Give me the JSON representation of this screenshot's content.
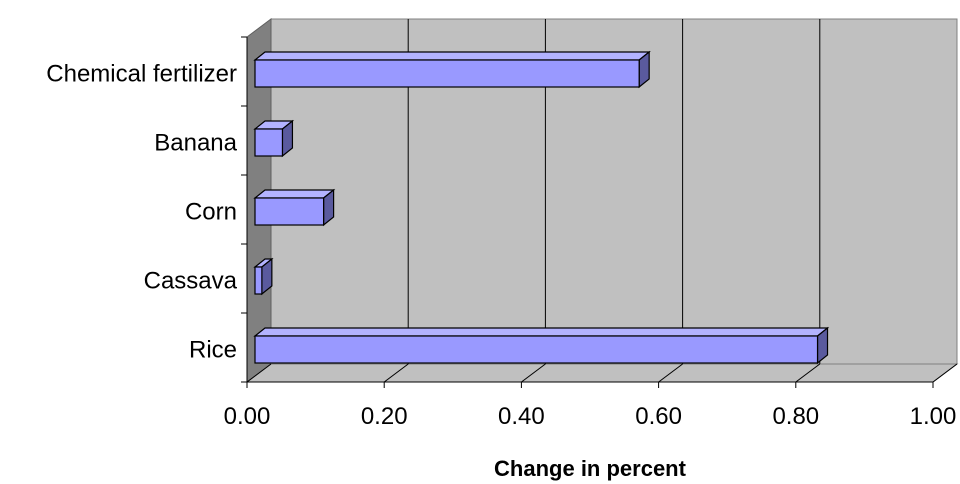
{
  "chart_data": {
    "type": "bar",
    "orientation": "horizontal",
    "style": "3d",
    "title": "",
    "xlabel": "Change in percent",
    "ylabel": "",
    "categories": [
      "Chemical fertilizer",
      "Banana",
      "Corn",
      "Cassava",
      "Rice"
    ],
    "values": [
      0.56,
      0.04,
      0.1,
      0.01,
      0.82
    ],
    "xlim": [
      0,
      1.0
    ],
    "x_ticks": [
      "0.00",
      "0.20",
      "0.40",
      "0.60",
      "0.80",
      "1.00"
    ],
    "grid": "vertical",
    "legend": "none",
    "colors": {
      "bar_front": "#9999ff",
      "bar_top": "#b3b3ff",
      "bar_side": "#5a5a9e",
      "wall": "#c0c0c0",
      "floor": "#c0c0c0",
      "side_wall": "#808080"
    }
  }
}
